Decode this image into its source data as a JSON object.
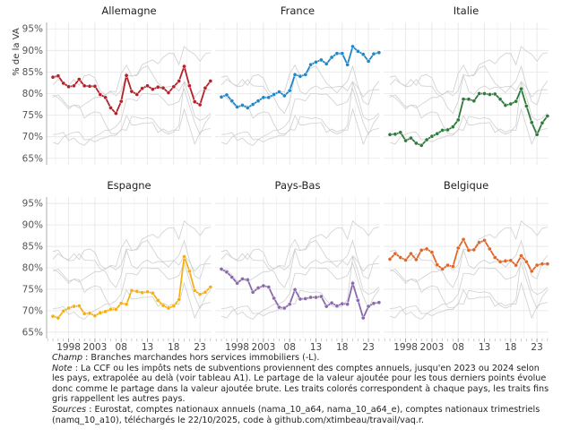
{
  "chart_data": {
    "type": "line",
    "ylabel": "% de la VA",
    "ylim": [
      63.5,
      96.5
    ],
    "xlim": [
      1993.8,
      2025.2
    ],
    "yticks": [
      65,
      70,
      75,
      80,
      85,
      90,
      95
    ],
    "ytick_labels": [
      "65%",
      "70%",
      "75%",
      "80%",
      "85%",
      "90%",
      "95%"
    ],
    "xticks": [
      1998,
      2003,
      2008,
      2013,
      2018,
      2023
    ],
    "xtick_labels": [
      "1998",
      "2003",
      "08",
      "13",
      "18",
      "23"
    ],
    "grid": true,
    "x": [
      1995,
      1996,
      1997,
      1998,
      1999,
      2000,
      2001,
      2002,
      2003,
      2004,
      2005,
      2006,
      2007,
      2008,
      2009,
      2010,
      2011,
      2012,
      2013,
      2014,
      2015,
      2016,
      2017,
      2018,
      2019,
      2020,
      2021,
      2022,
      2023,
      2024,
      2025
    ],
    "series": [
      {
        "name": "Allemagne",
        "color": "#b5202a",
        "values": [
          83.8,
          84.1,
          82.4,
          81.6,
          81.8,
          83.3,
          81.8,
          81.7,
          81.7,
          79.8,
          79.1,
          76.7,
          75.4,
          78.2,
          84.2,
          80.5,
          79.8,
          81.2,
          81.8,
          81.0,
          81.5,
          81.3,
          80.2,
          81.6,
          82.9,
          86.3,
          81.8,
          78.1,
          77.4,
          81.3,
          82.9
        ]
      },
      {
        "name": "France",
        "color": "#1f86c8",
        "values": [
          79.2,
          79.7,
          78.3,
          76.9,
          77.3,
          76.7,
          77.5,
          78.3,
          79.1,
          79.1,
          79.8,
          80.4,
          79.5,
          80.7,
          84.4,
          84.0,
          84.4,
          86.7,
          87.3,
          87.8,
          86.9,
          88.4,
          89.3,
          89.3,
          86.7,
          90.9,
          89.8,
          89.1,
          87.5,
          89.2,
          89.5
        ]
      },
      {
        "name": "Italie",
        "color": "#2e7a3c",
        "values": [
          70.5,
          70.6,
          71.0,
          69.1,
          69.7,
          68.5,
          68.0,
          69.3,
          70.1,
          70.7,
          71.5,
          71.6,
          72.3,
          73.9,
          78.7,
          78.7,
          78.3,
          80.0,
          80.0,
          79.8,
          79.9,
          78.7,
          77.3,
          77.6,
          78.2,
          81.1,
          77.1,
          73.3,
          70.5,
          73.2,
          74.8
        ]
      },
      {
        "name": "Espagne",
        "color": "#f4b013",
        "values": [
          68.7,
          68.3,
          69.9,
          70.6,
          71.0,
          71.1,
          69.3,
          69.4,
          68.8,
          69.5,
          69.8,
          70.3,
          70.3,
          71.7,
          71.5,
          74.7,
          74.5,
          74.2,
          74.4,
          74.1,
          72.4,
          71.2,
          70.6,
          71.1,
          72.6,
          82.6,
          79.2,
          74.7,
          73.8,
          74.3,
          75.5
        ]
      },
      {
        "name": "Pays-Bas",
        "color": "#8a6aab",
        "values": [
          79.7,
          79.0,
          77.8,
          76.4,
          77.4,
          77.2,
          74.3,
          75.3,
          75.8,
          75.5,
          72.9,
          70.8,
          70.6,
          71.5,
          74.9,
          72.7,
          72.8,
          73.1,
          73.1,
          73.3,
          71.0,
          71.8,
          71.1,
          71.6,
          71.5,
          76.4,
          72.4,
          68.3,
          71.0,
          71.7,
          71.9
        ]
      },
      {
        "name": "Belgique",
        "color": "#e0672a",
        "values": [
          82.0,
          83.3,
          82.4,
          81.8,
          83.3,
          81.9,
          84.1,
          84.4,
          83.6,
          80.7,
          79.7,
          80.6,
          80.3,
          84.6,
          86.6,
          84.1,
          84.2,
          85.9,
          86.4,
          84.4,
          82.4,
          81.4,
          81.6,
          81.7,
          80.6,
          82.8,
          81.4,
          79.2,
          80.6,
          80.9,
          80.9
        ]
      }
    ],
    "other_series_color": "#cfcfcf"
  },
  "notes": {
    "champ_label": "Champ",
    "champ_text": " : Branches marchandes hors services immobiliers (-L).",
    "note_label": "Note",
    "note_text": " : La CCF ou les impôts nets de subventions proviennent des comptes annuels, jusqu'en 2023 ou 2024 selon les pays, extrapolée au delà (voir tableau A1). Le partage de la valeur ajoutée pour les tous derniers points évolue donc comme le partage dans la valeur ajoutée brute. Les traits colorés correspondent à chaque pays, les traits fins gris rappellent les autres pays.",
    "sources_label": "Sources",
    "sources_text": " : Eurostat, comptes nationaux annuels (nama_10_a64, nama_10_a64_e), comptes nationaux trimestriels (namq_10_a10), téléchargés le 22/10/2025, code à github.com/xtimbeau/travail/vaq.r."
  }
}
